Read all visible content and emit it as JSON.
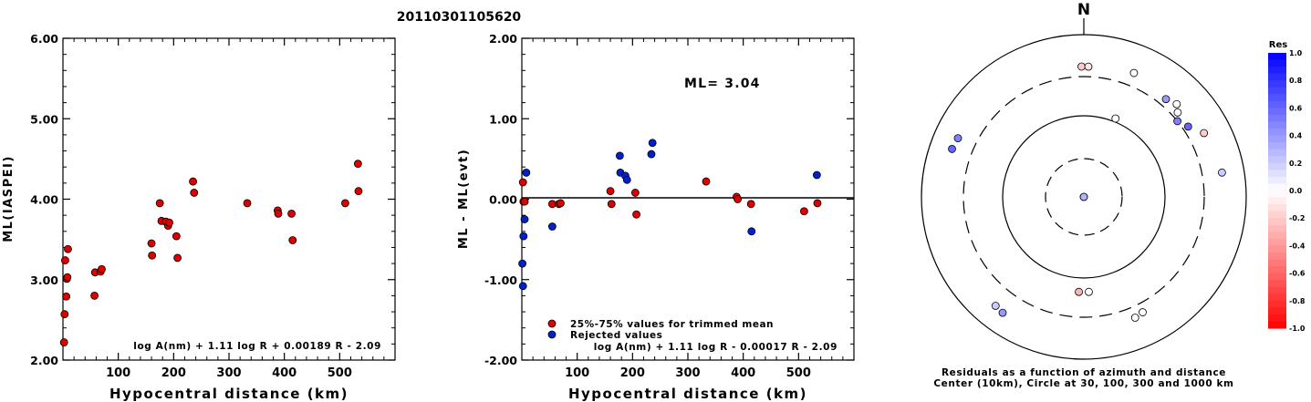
{
  "header": {
    "title": "20110301105620"
  },
  "chart_data": [
    {
      "type": "scatter",
      "id": "ml-vs-distance",
      "title": "",
      "xlabel": "Hypocentral distance (km)",
      "ylabel": "ML(IASPEI)",
      "xlim": [
        0,
        600
      ],
      "ylim": [
        2.0,
        6.0
      ],
      "xticks": [
        "100",
        "200",
        "300",
        "400",
        "500"
      ],
      "xtick_values": [
        100,
        200,
        300,
        400,
        500
      ],
      "yticks": [
        "2.00",
        "3.00",
        "4.00",
        "5.00",
        "6.00"
      ],
      "ytick_values": [
        2,
        3,
        4,
        5,
        6
      ],
      "formula": "log A(nm) + 1.11 log R + 0.00189 R - 2.09",
      "series": [
        {
          "color": "#dd0000",
          "points": [
            [
              2,
              2.22
            ],
            [
              3,
              2.57
            ],
            [
              4,
              3.24
            ],
            [
              6,
              2.79
            ],
            [
              7,
              3.01
            ],
            [
              8,
              3.03
            ],
            [
              9,
              3.38
            ],
            [
              57,
              2.8
            ],
            [
              58,
              3.09
            ],
            [
              68,
              3.1
            ],
            [
              70,
              3.13
            ],
            [
              160,
              3.45
            ],
            [
              161,
              3.3
            ],
            [
              175,
              3.95
            ],
            [
              178,
              3.73
            ],
            [
              186,
              3.72
            ],
            [
              190,
              3.67
            ],
            [
              192,
              3.71
            ],
            [
              205,
              3.54
            ],
            [
              207,
              3.27
            ],
            [
              235,
              4.22
            ],
            [
              237,
              4.08
            ],
            [
              333,
              3.95
            ],
            [
              388,
              3.86
            ],
            [
              389,
              3.82
            ],
            [
              413,
              3.82
            ],
            [
              415,
              3.49
            ],
            [
              510,
              3.95
            ],
            [
              533,
              4.44
            ],
            [
              534,
              4.1
            ]
          ]
        }
      ]
    },
    {
      "type": "scatter",
      "id": "residual-vs-distance",
      "title": "",
      "xlabel": "Hypocentral distance (km)",
      "ylabel": "ML - ML(evt)",
      "xlim": [
        0,
        600
      ],
      "ylim": [
        -2.0,
        2.0
      ],
      "xticks": [
        "100",
        "200",
        "300",
        "400",
        "500"
      ],
      "xtick_values": [
        100,
        200,
        300,
        400,
        500
      ],
      "yticks": [
        "-2.00",
        "-1.00",
        "0.00",
        "1.00",
        "2.00"
      ],
      "ytick_values": [
        -2,
        -1,
        0,
        1,
        2
      ],
      "annotation": "ML= 3.04",
      "formula": "log A(nm) + 1.11 log R - 0.00017 R - 2.09",
      "legend": [
        {
          "label": "25%-75% values for trimmed mean",
          "color": "#dd0000"
        },
        {
          "label": "Rejected values",
          "color": "#0022cc"
        }
      ],
      "series": [
        {
          "color": "#dd0000",
          "points": [
            [
              2,
              0.21
            ],
            [
              3,
              -0.03
            ],
            [
              5,
              -0.03
            ],
            [
              55,
              -0.06
            ],
            [
              67,
              -0.06
            ],
            [
              70,
              -0.05
            ],
            [
              160,
              0.1
            ],
            [
              162,
              -0.06
            ],
            [
              205,
              0.08
            ],
            [
              207,
              -0.19
            ],
            [
              333,
              0.22
            ],
            [
              388,
              0.03
            ],
            [
              390,
              0.0
            ],
            [
              414,
              -0.06
            ],
            [
              510,
              -0.15
            ],
            [
              534,
              -0.05
            ]
          ]
        },
        {
          "color": "#0022cc",
          "points": [
            [
              1,
              -0.8
            ],
            [
              2,
              -1.08
            ],
            [
              3,
              -0.46
            ],
            [
              5,
              -0.25
            ],
            [
              8,
              0.33
            ],
            [
              55,
              -0.34
            ],
            [
              177,
              0.54
            ],
            [
              178,
              0.33
            ],
            [
              187,
              0.29
            ],
            [
              190,
              0.24
            ],
            [
              234,
              0.56
            ],
            [
              236,
              0.7
            ],
            [
              415,
              -0.4
            ],
            [
              533,
              0.3
            ]
          ]
        }
      ]
    },
    {
      "type": "scatter",
      "id": "residual-polar",
      "title": "",
      "north_label": "N",
      "caption_line1": "Residuals as a function of azimuth and distance",
      "caption_line2": "Center (10km), Circle at 30, 100, 300 and 1000 km",
      "colorbar": {
        "title": "Res",
        "ticks": [
          "1.0",
          "0.8",
          "0.6",
          "0.4",
          "0.2",
          "0.0",
          "-0.2",
          "-0.4",
          "-0.6",
          "-0.8",
          "-1.0"
        ],
        "tick_values": [
          1.0,
          0.8,
          0.6,
          0.4,
          0.2,
          0.0,
          -0.2,
          -0.4,
          -0.6,
          -0.8,
          -1.0
        ],
        "positive_color": "#0000ff",
        "negative_color": "#ff0000",
        "neutral_color": "#ffffff"
      },
      "stations": [
        {
          "azimuth": 270,
          "distance_km": 10,
          "res": 0.2
        },
        {
          "azimuth": 90,
          "distance_km": 10,
          "res": 0.3
        },
        {
          "azimuth": 183,
          "distance_km": 148,
          "res": -0.3
        },
        {
          "azimuth": 177,
          "distance_km": 148,
          "res": 0.0
        },
        {
          "azimuth": 22,
          "distance_km": 110,
          "res": 0.0
        },
        {
          "azimuth": 359,
          "distance_km": 400,
          "res": -0.2
        },
        {
          "azimuth": 2,
          "distance_km": 400,
          "res": -0.1
        },
        {
          "azimuth": 22,
          "distance_km": 440,
          "res": 0.0
        },
        {
          "azimuth": 40,
          "distance_km": 370,
          "res": 0.4
        },
        {
          "azimuth": 45,
          "distance_km": 410,
          "res": 0.0
        },
        {
          "azimuth": 48,
          "distance_km": 355,
          "res": 0.0
        },
        {
          "azimuth": 51,
          "distance_km": 300,
          "res": 0.5
        },
        {
          "azimuth": 56,
          "distance_km": 350,
          "res": 0.6
        },
        {
          "azimuth": 62,
          "distance_km": 470,
          "res": -0.2
        },
        {
          "azimuth": 80,
          "distance_km": 530,
          "res": 0.2
        },
        {
          "azimuth": 157,
          "distance_km": 410,
          "res": 0.0
        },
        {
          "azimuth": 153,
          "distance_km": 390,
          "res": 0.0
        },
        {
          "azimuth": 215,
          "distance_km": 550,
          "res": 0.4
        },
        {
          "azimuth": 219,
          "distance_km": 530,
          "res": 0.2
        },
        {
          "azimuth": 290,
          "distance_km": 530,
          "res": 0.6
        },
        {
          "azimuth": 295,
          "distance_km": 510,
          "res": 0.5
        }
      ]
    }
  ]
}
